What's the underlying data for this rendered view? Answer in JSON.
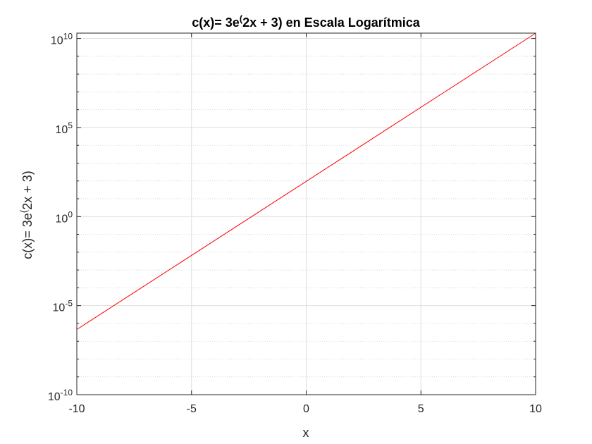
{
  "chart_data": {
    "type": "line",
    "title": "c(x)= 3e(2x + 3) en Escala Logarítmica",
    "title_parts": {
      "before": "c(x)= 3e",
      "sup": "(",
      "after": "2x + 3) en Escala Logarítmica"
    },
    "xlabel": "x",
    "ylabel": "c(x)= 3e(2x + 3)",
    "ylabel_parts": {
      "before": "c(x)= 3e",
      "sup": "(",
      "after": "2x + 3)"
    },
    "xlim": [
      -10,
      10
    ],
    "ylim_log10": [
      -10,
      10.3
    ],
    "yscale": "log",
    "grid": true,
    "minor_grid": true,
    "xticks": [
      -10,
      -5,
      0,
      5,
      10
    ],
    "xtick_labels": [
      "-10",
      "-5",
      "0",
      "5",
      "10"
    ],
    "yticks": [
      {
        "value": 1e-10,
        "base": "10",
        "exp": "-10"
      },
      {
        "value": 1e-05,
        "base": "10",
        "exp": "-5"
      },
      {
        "value": 1,
        "base": "10",
        "exp": "0"
      },
      {
        "value": 100000.0,
        "base": "10",
        "exp": "5"
      },
      {
        "value": 10000000000.0,
        "base": "10",
        "exp": "10"
      }
    ],
    "series": [
      {
        "color": "#ff0000",
        "x": [
          -10,
          10
        ],
        "y": [
          4.57e-07,
          19700000000.0
        ]
      }
    ]
  }
}
